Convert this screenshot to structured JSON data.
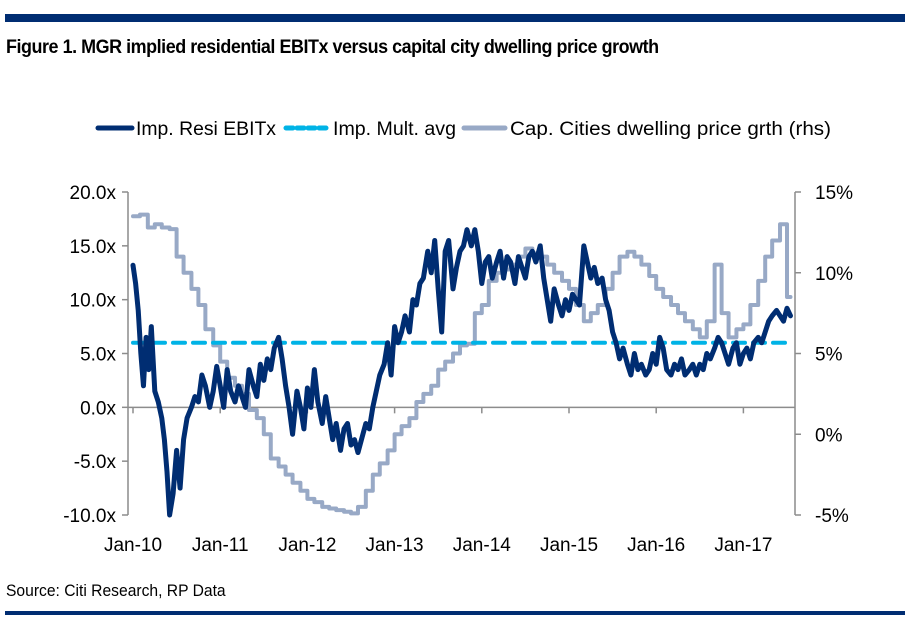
{
  "figure": {
    "title": "Figure 1. MGR implied residential EBITx versus capital city dwelling price growth",
    "source": "Source: Citi Research, RP Data",
    "colors": {
      "rule": "#002d72"
    }
  },
  "chart_data": {
    "type": "line",
    "title": "Figure 1. MGR implied residential EBITx versus capital city dwelling price growth",
    "xlabel": "",
    "ylabel": "",
    "x_ticks": [
      "Jan-10",
      "Jan-11",
      "Jan-12",
      "Jan-13",
      "Jan-14",
      "Jan-15",
      "Jan-16",
      "Jan-17"
    ],
    "x_range": [
      2010.0,
      2017.55
    ],
    "y_left": {
      "range": [
        -10,
        20
      ],
      "ticks": [
        20,
        15,
        10,
        5,
        0,
        -5,
        -10
      ],
      "tick_labels": [
        "20.0x",
        "15.0x",
        "10.0x",
        "5.0x",
        "0.0x",
        "-5.0x",
        "-10.0x"
      ]
    },
    "y_right": {
      "range": [
        -5,
        15
      ],
      "ticks": [
        15,
        10,
        5,
        0,
        -5
      ],
      "tick_labels": [
        "15%",
        "10%",
        "5%",
        "0%",
        "-5%"
      ]
    },
    "legend": {
      "placement": "top",
      "entries": [
        "Imp. Resi EBITx",
        "Imp. Mult. avg",
        "Cap. Cities dwelling price grth (rhs)"
      ]
    },
    "series": [
      {
        "name": "Imp. Resi EBITx",
        "axis": "left",
        "color": "#002d72",
        "style": "solid",
        "x": [
          2010.0,
          2010.03,
          2010.06,
          2010.09,
          2010.12,
          2010.15,
          2010.18,
          2010.21,
          2010.25,
          2010.29,
          2010.33,
          2010.36,
          2010.39,
          2010.42,
          2010.46,
          2010.5,
          2010.54,
          2010.58,
          2010.62,
          2010.67,
          2010.71,
          2010.75,
          2010.79,
          2010.83,
          2010.88,
          2010.92,
          2010.96,
          2011.0,
          2011.04,
          2011.08,
          2011.12,
          2011.17,
          2011.21,
          2011.25,
          2011.29,
          2011.33,
          2011.38,
          2011.42,
          2011.46,
          2011.5,
          2011.54,
          2011.58,
          2011.62,
          2011.67,
          2011.71,
          2011.75,
          2011.79,
          2011.83,
          2011.88,
          2011.92,
          2011.96,
          2012.0,
          2012.04,
          2012.08,
          2012.12,
          2012.17,
          2012.21,
          2012.25,
          2012.29,
          2012.33,
          2012.38,
          2012.42,
          2012.46,
          2012.5,
          2012.54,
          2012.58,
          2012.62,
          2012.67,
          2012.71,
          2012.75,
          2012.79,
          2012.83,
          2012.88,
          2012.92,
          2012.96,
          2013.0,
          2013.04,
          2013.08,
          2013.12,
          2013.17,
          2013.21,
          2013.25,
          2013.29,
          2013.33,
          2013.38,
          2013.42,
          2013.46,
          2013.5,
          2013.54,
          2013.58,
          2013.62,
          2013.67,
          2013.71,
          2013.75,
          2013.79,
          2013.83,
          2013.88,
          2013.92,
          2013.96,
          2014.0,
          2014.04,
          2014.08,
          2014.12,
          2014.17,
          2014.21,
          2014.25,
          2014.29,
          2014.33,
          2014.38,
          2014.42,
          2014.46,
          2014.5,
          2014.54,
          2014.58,
          2014.62,
          2014.67,
          2014.71,
          2014.75,
          2014.79,
          2014.83,
          2014.88,
          2014.92,
          2014.96,
          2015.0,
          2015.04,
          2015.08,
          2015.12,
          2015.17,
          2015.21,
          2015.25,
          2015.29,
          2015.33,
          2015.38,
          2015.42,
          2015.46,
          2015.5,
          2015.54,
          2015.58,
          2015.62,
          2015.67,
          2015.71,
          2015.75,
          2015.79,
          2015.83,
          2015.88,
          2015.92,
          2015.96,
          2016.0,
          2016.04,
          2016.08,
          2016.12,
          2016.17,
          2016.21,
          2016.25,
          2016.29,
          2016.33,
          2016.38,
          2016.42,
          2016.46,
          2016.5,
          2016.54,
          2016.58,
          2016.62,
          2016.67,
          2016.71,
          2016.75,
          2016.79,
          2016.83,
          2016.88,
          2016.92,
          2016.96,
          2017.0,
          2017.04,
          2017.08,
          2017.12,
          2017.17,
          2017.21,
          2017.25,
          2017.29,
          2017.33,
          2017.38,
          2017.42,
          2017.46,
          2017.5,
          2017.54
        ],
        "values": [
          13.2,
          11.5,
          9.0,
          5.0,
          2.0,
          6.5,
          3.5,
          7.5,
          1.5,
          0.5,
          -1.0,
          -3.0,
          -6.0,
          -10.0,
          -8.0,
          -4.0,
          -7.5,
          -3.0,
          -1.0,
          0.0,
          1.0,
          0.5,
          3.0,
          2.0,
          0.0,
          1.5,
          3.8,
          2.0,
          0.0,
          3.5,
          1.5,
          0.5,
          2.0,
          1.0,
          0.0,
          3.5,
          2.0,
          1.0,
          4.0,
          2.5,
          4.5,
          3.5,
          5.5,
          6.5,
          4.5,
          2.0,
          0.0,
          -2.5,
          1.5,
          0.0,
          -2.0,
          1.8,
          0.0,
          3.5,
          0.5,
          -1.5,
          1.0,
          -1.0,
          -3.0,
          -1.5,
          -4.0,
          -2.0,
          -1.5,
          -3.5,
          -3.0,
          -4.2,
          -3.0,
          -1.5,
          -2.0,
          0.0,
          1.5,
          3.0,
          4.0,
          6.0,
          3.0,
          7.5,
          6.0,
          7.0,
          8.5,
          7.0,
          10.0,
          9.5,
          11.5,
          12.0,
          14.5,
          12.5,
          15.5,
          11.0,
          7.0,
          14.5,
          15.5,
          11.0,
          13.0,
          14.5,
          15.0,
          16.5,
          15.0,
          16.5,
          14.5,
          11.5,
          13.5,
          14.0,
          12.0,
          13.5,
          14.5,
          12.0,
          14.0,
          13.5,
          11.5,
          14.0,
          13.0,
          12.0,
          14.0,
          14.5,
          13.5,
          15.0,
          12.0,
          10.0,
          8.0,
          11.0,
          9.5,
          8.5,
          10.0,
          9.0,
          10.5,
          10.0,
          9.5,
          15.0,
          13.5,
          12.0,
          13.0,
          11.5,
          12.0,
          10.0,
          9.0,
          7.0,
          6.0,
          4.5,
          5.5,
          4.0,
          3.0,
          5.0,
          3.5,
          4.0,
          3.0,
          3.5,
          5.0,
          4.0,
          6.5,
          5.5,
          3.5,
          3.0,
          4.0,
          3.5,
          4.5,
          3.0,
          3.5,
          4.0,
          3.0,
          4.0,
          3.5,
          5.0,
          4.5,
          5.5,
          6.5,
          6.0,
          5.0,
          4.0,
          5.5,
          6.0,
          4.0,
          5.0,
          5.5,
          4.5,
          6.0,
          6.5,
          6.0,
          7.0,
          8.0,
          8.5,
          9.0,
          8.5,
          8.0,
          9.2,
          8.5
        ]
      },
      {
        "name": "Imp. Mult. avg",
        "axis": "left",
        "color": "#00b3e6",
        "style": "dashed",
        "x": [
          2010.0,
          2017.5
        ],
        "values": [
          6.0,
          6.0
        ]
      },
      {
        "name": "Cap. Cities dwelling price grth (rhs)",
        "axis": "right",
        "color": "#98a9c6",
        "style": "step",
        "x": [
          2010.0,
          2010.08,
          2010.17,
          2010.25,
          2010.33,
          2010.42,
          2010.5,
          2010.58,
          2010.67,
          2010.75,
          2010.83,
          2010.92,
          2011.0,
          2011.08,
          2011.17,
          2011.25,
          2011.33,
          2011.42,
          2011.5,
          2011.58,
          2011.67,
          2011.75,
          2011.83,
          2011.92,
          2012.0,
          2012.08,
          2012.17,
          2012.25,
          2012.33,
          2012.42,
          2012.5,
          2012.58,
          2012.67,
          2012.75,
          2012.83,
          2012.92,
          2013.0,
          2013.08,
          2013.17,
          2013.25,
          2013.33,
          2013.42,
          2013.5,
          2013.58,
          2013.67,
          2013.75,
          2013.83,
          2013.92,
          2014.0,
          2014.08,
          2014.17,
          2014.25,
          2014.33,
          2014.42,
          2014.5,
          2014.58,
          2014.67,
          2014.75,
          2014.83,
          2014.92,
          2015.0,
          2015.08,
          2015.17,
          2015.25,
          2015.33,
          2015.42,
          2015.5,
          2015.58,
          2015.67,
          2015.75,
          2015.83,
          2015.92,
          2016.0,
          2016.08,
          2016.17,
          2016.25,
          2016.33,
          2016.42,
          2016.5,
          2016.58,
          2016.67,
          2016.75,
          2016.83,
          2016.92,
          2017.0,
          2017.08,
          2017.17,
          2017.25,
          2017.33,
          2017.42,
          2017.5
        ],
        "values": [
          13.5,
          13.6,
          12.8,
          13.0,
          12.8,
          12.7,
          11.0,
          10.0,
          9.0,
          8.0,
          6.5,
          5.5,
          4.5,
          3.5,
          3.0,
          2.5,
          1.5,
          1.0,
          0.0,
          -1.5,
          -2.0,
          -2.5,
          -3.0,
          -3.5,
          -4.0,
          -4.2,
          -4.5,
          -4.6,
          -4.7,
          -4.8,
          -4.9,
          -4.5,
          -3.5,
          -2.5,
          -1.8,
          -1.0,
          0.0,
          0.5,
          1.0,
          2.0,
          2.5,
          3.0,
          4.0,
          4.5,
          5.0,
          5.5,
          5.6,
          7.5,
          8.0,
          9.5,
          10.0,
          10.2,
          10.5,
          11.0,
          11.5,
          11.2,
          11.0,
          10.5,
          10.0,
          9.5,
          9.0,
          8.0,
          7.0,
          7.5,
          8.0,
          9.0,
          10.0,
          11.0,
          11.3,
          11.0,
          10.5,
          9.8,
          9.0,
          8.5,
          8.0,
          7.5,
          7.0,
          6.5,
          6.0,
          7.0,
          10.5,
          7.5,
          6.0,
          6.5,
          6.8,
          8.0,
          9.5,
          11.0,
          12.0,
          13.0,
          8.5
        ]
      }
    ],
    "grid": false
  }
}
